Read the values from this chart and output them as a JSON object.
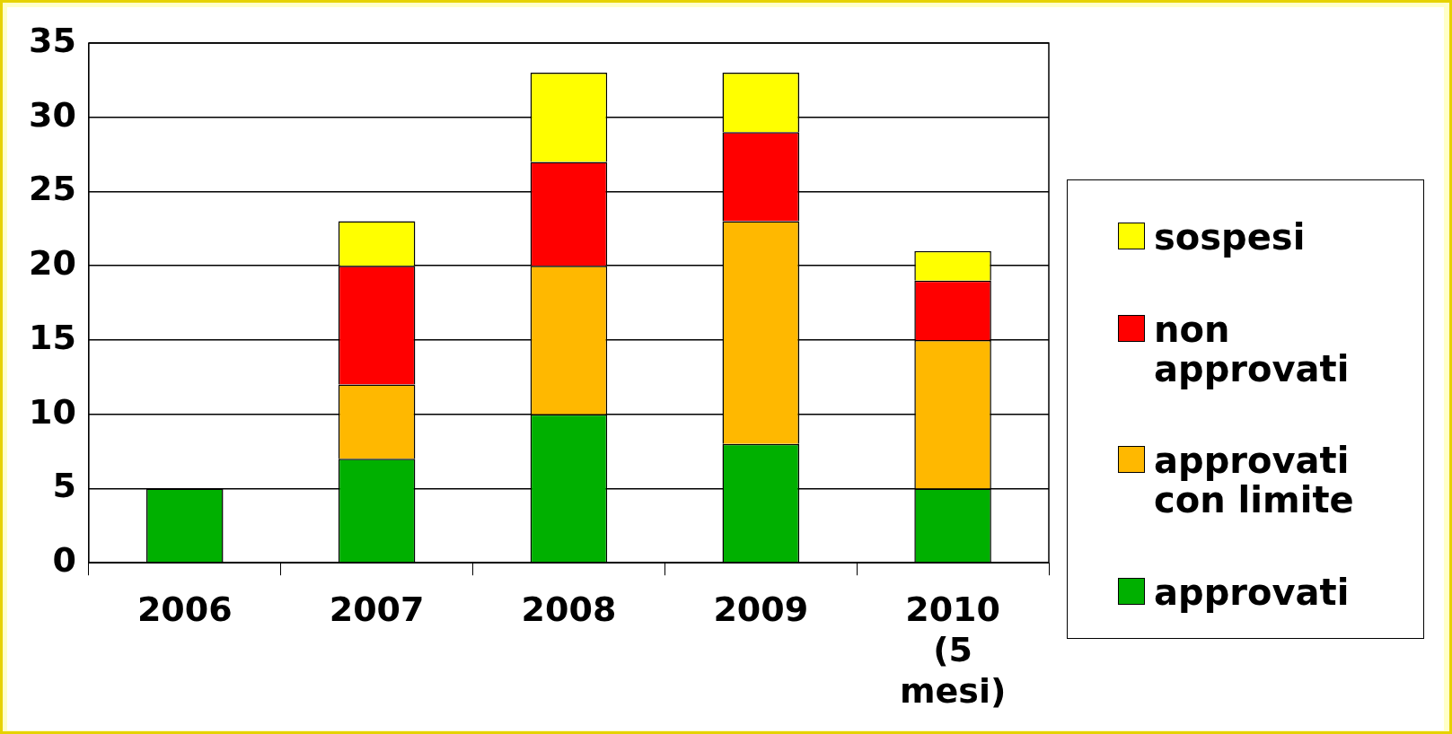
{
  "chart_data": {
    "type": "bar",
    "stacked": true,
    "categories": [
      "2006",
      "2007",
      "2008",
      "2009",
      "2010 (5 mesi)"
    ],
    "series": [
      {
        "name": "approvati",
        "color": "#00b000",
        "values": [
          5,
          7,
          10,
          8,
          5
        ]
      },
      {
        "name": "approvati con limite",
        "color": "#ffb800",
        "values": [
          0,
          5,
          10,
          15,
          10
        ]
      },
      {
        "name": "non approvati",
        "color": "#ff0000",
        "values": [
          0,
          8,
          7,
          6,
          4
        ]
      },
      {
        "name": "sospesi",
        "color": "#ffff00",
        "values": [
          0,
          3,
          6,
          4,
          2
        ]
      }
    ],
    "ylim": [
      0,
      35
    ],
    "yticks": [
      0,
      5,
      10,
      15,
      20,
      25,
      30,
      35
    ],
    "grid": "y",
    "legend": "right"
  }
}
